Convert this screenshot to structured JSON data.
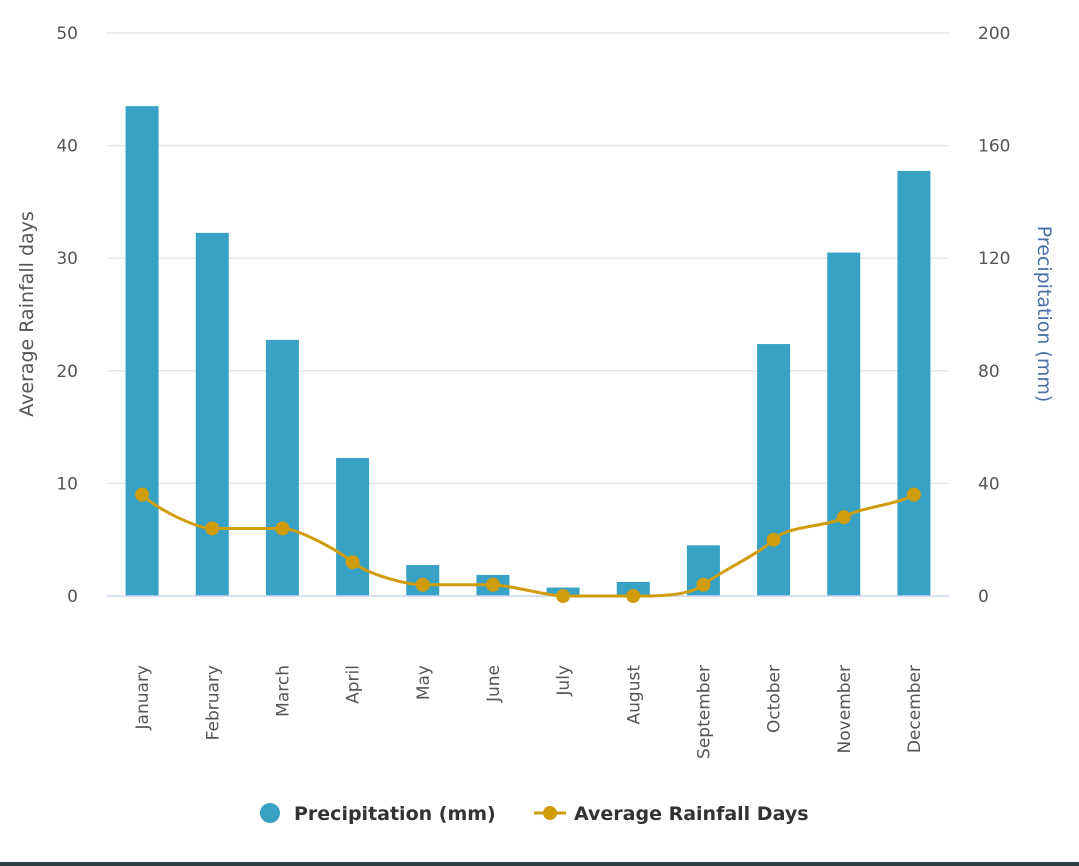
{
  "chart_data": {
    "type": "bar+line",
    "categories": [
      "January",
      "February",
      "March",
      "April",
      "May",
      "June",
      "July",
      "August",
      "September",
      "October",
      "November",
      "December"
    ],
    "series": [
      {
        "name": "Precipitation (mm)",
        "type": "bar",
        "axis": "right",
        "color": "#37a2c4",
        "values": [
          174,
          129,
          91,
          49,
          11,
          7.5,
          3,
          5,
          18,
          89.5,
          122,
          151
        ]
      },
      {
        "name": "Average Rainfall Days",
        "type": "spline",
        "axis": "left",
        "color": "#cf9c0c",
        "values": [
          9,
          6,
          6,
          3,
          1,
          1,
          0,
          0,
          1,
          5,
          7,
          9
        ]
      }
    ],
    "y_left": {
      "label": "Average Rainfall days",
      "range": [
        0,
        50
      ],
      "ticks": [
        "0",
        "10",
        "20",
        "30",
        "40",
        "50"
      ],
      "label_color": "#555555"
    },
    "y_right": {
      "label": "Precipitation (mm)",
      "range": [
        0,
        200
      ],
      "ticks": [
        "0",
        "40",
        "80",
        "120",
        "160",
        "200"
      ],
      "label_color": "#4a6fa5"
    },
    "grid": true,
    "legend": "bottom-center"
  }
}
